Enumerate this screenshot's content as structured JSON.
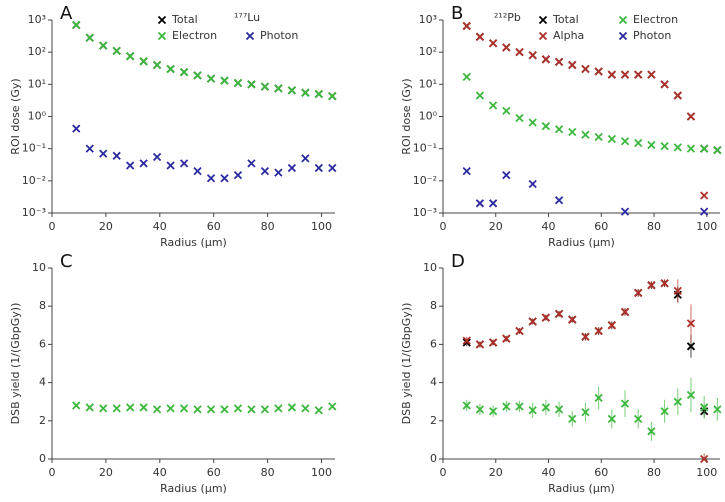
{
  "chart_data": [
    {
      "type": "scatter",
      "title": "A",
      "annotation": "¹⁷⁷Lu",
      "xlabel": "Radius  (µm)",
      "ylabel": "ROI dose (Gy)",
      "log_y": true,
      "x": [
        9,
        14,
        19,
        24,
        29,
        34,
        39,
        44,
        49,
        54,
        59,
        64,
        69,
        74,
        79,
        84,
        89,
        94,
        99,
        104
      ],
      "xlim": [
        0,
        105
      ],
      "xticks": [
        0,
        20,
        40,
        60,
        80,
        100
      ],
      "ylim": [
        0.001,
        1000
      ],
      "yticks": [
        {
          "value": 0.001,
          "label": "10⁻³"
        },
        {
          "value": 0.01,
          "label": "10⁻²"
        },
        {
          "value": 0.1,
          "label": "10⁻¹"
        },
        {
          "value": 1,
          "label": "10⁰"
        },
        {
          "value": 10,
          "label": "10¹"
        },
        {
          "value": 100,
          "label": "10²"
        },
        {
          "value": 1000,
          "label": "10³"
        }
      ],
      "series": [
        {
          "name": "Total",
          "color": "#000000",
          "values": [
            700,
            280,
            160,
            110,
            75,
            52,
            40,
            30,
            24,
            19,
            15,
            13,
            11,
            10,
            8.5,
            7.5,
            6.5,
            5.5,
            5,
            4.3
          ]
        },
        {
          "name": "Electron",
          "color": "#3cb83c",
          "values": [
            700,
            280,
            160,
            110,
            75,
            52,
            40,
            30,
            24,
            19,
            15,
            13,
            11,
            10,
            8.5,
            7.5,
            6.5,
            5.5,
            5,
            4.3
          ]
        },
        {
          "name": "Photon",
          "color": "#2a2aa0",
          "values": [
            0.42,
            0.1,
            0.07,
            0.06,
            0.03,
            0.035,
            0.055,
            0.03,
            0.035,
            0.02,
            0.012,
            0.012,
            0.015,
            0.035,
            0.02,
            0.018,
            0.025,
            0.05,
            0.025,
            0.025
          ]
        }
      ]
    },
    {
      "type": "scatter",
      "title": "B",
      "annotation": "²¹²Pb",
      "xlabel": "Radius  (µm)",
      "ylabel": "ROI dose (Gy)",
      "log_y": true,
      "x": [
        9,
        14,
        19,
        24,
        29,
        34,
        39,
        44,
        49,
        54,
        59,
        64,
        69,
        74,
        79,
        84,
        89,
        94,
        99,
        104
      ],
      "xlim": [
        0,
        105
      ],
      "xticks": [
        0,
        20,
        40,
        60,
        80,
        100
      ],
      "ylim": [
        0.001,
        1000
      ],
      "yticks": [
        {
          "value": 0.001,
          "label": "10⁻³"
        },
        {
          "value": 0.01,
          "label": "10⁻²"
        },
        {
          "value": 0.1,
          "label": "10⁻¹"
        },
        {
          "value": 1,
          "label": "10⁰"
        },
        {
          "value": 10,
          "label": "10¹"
        },
        {
          "value": 100,
          "label": "10²"
        },
        {
          "value": 1000,
          "label": "10³"
        }
      ],
      "series": [
        {
          "name": "Total",
          "color": "#000000",
          "values": [
            650,
            300,
            190,
            140,
            100,
            80,
            60,
            50,
            40,
            30,
            25,
            20,
            20,
            20,
            20,
            10,
            4.5,
            1.0,
            0.1,
            0.09
          ]
        },
        {
          "name": "Alpha",
          "color": "#b0302a",
          "values": [
            650,
            300,
            190,
            140,
            100,
            80,
            60,
            50,
            40,
            30,
            25,
            20,
            20,
            20,
            20,
            10,
            4.5,
            1.0,
            0.0035,
            null
          ]
        },
        {
          "name": "Electron",
          "color": "#3cb83c",
          "values": [
            17,
            4.5,
            2.2,
            1.5,
            0.9,
            0.65,
            0.5,
            0.4,
            0.33,
            0.27,
            0.23,
            0.2,
            0.17,
            0.15,
            0.13,
            0.12,
            0.11,
            0.1,
            0.1,
            0.09
          ]
        },
        {
          "name": "Photon",
          "color": "#2a2aa0",
          "values": [
            0.02,
            0.002,
            0.002,
            0.015,
            null,
            0.008,
            null,
            0.0025,
            null,
            null,
            null,
            null,
            0.0011,
            null,
            null,
            null,
            null,
            null,
            0.0011,
            null
          ]
        }
      ]
    },
    {
      "type": "scatter",
      "title": "C",
      "xlabel": "Radius  (µm)",
      "ylabel": "DSB yield (1/(GbpGy))",
      "log_y": false,
      "x": [
        9,
        14,
        19,
        24,
        29,
        34,
        39,
        44,
        49,
        54,
        59,
        64,
        69,
        74,
        79,
        84,
        89,
        94,
        99,
        104
      ],
      "xlim": [
        0,
        105
      ],
      "xticks": [
        0,
        20,
        40,
        60,
        80,
        100
      ],
      "ylim": [
        0,
        10
      ],
      "yticks": [
        0,
        2,
        4,
        6,
        8,
        10
      ],
      "series": [
        {
          "name": "Electron",
          "color": "#3cb83c",
          "values": [
            2.8,
            2.7,
            2.65,
            2.65,
            2.7,
            2.7,
            2.6,
            2.65,
            2.65,
            2.6,
            2.6,
            2.6,
            2.65,
            2.6,
            2.6,
            2.65,
            2.7,
            2.65,
            2.55,
            2.75
          ]
        }
      ]
    },
    {
      "type": "scatter",
      "title": "D",
      "xlabel": "Radius  (µm)",
      "ylabel": "DSB yield (1/(GbpGy))",
      "log_y": false,
      "x": [
        9,
        14,
        19,
        24,
        29,
        34,
        39,
        44,
        49,
        54,
        59,
        64,
        69,
        74,
        79,
        84,
        89,
        94,
        99,
        104
      ],
      "xlim": [
        0,
        105
      ],
      "xticks": [
        0,
        20,
        40,
        60,
        80,
        100
      ],
      "ylim": [
        0,
        10
      ],
      "yticks": [
        0,
        2,
        4,
        6,
        8,
        10
      ],
      "series": [
        {
          "name": "Total",
          "color": "#000000",
          "values": [
            6.1,
            6.0,
            6.1,
            6.3,
            6.7,
            7.2,
            7.4,
            7.6,
            7.3,
            6.4,
            6.7,
            7.0,
            7.7,
            8.7,
            9.1,
            9.2,
            8.6,
            5.9,
            2.5,
            null
          ],
          "errors": [
            0.2,
            0.15,
            0.15,
            0.15,
            0.15,
            0.15,
            0.15,
            0.15,
            0.15,
            0.2,
            0.2,
            0.2,
            0.2,
            0.2,
            0.2,
            0.2,
            0.4,
            0.6,
            0.3,
            null
          ]
        },
        {
          "name": "Alpha",
          "color": "#b0302a",
          "values": [
            6.2,
            6.0,
            6.1,
            6.3,
            6.7,
            7.2,
            7.4,
            7.6,
            7.3,
            6.4,
            6.7,
            7.0,
            7.7,
            8.7,
            9.1,
            9.2,
            8.8,
            7.1,
            0,
            null
          ],
          "errors": [
            0.2,
            0.15,
            0.15,
            0.15,
            0.15,
            0.15,
            0.15,
            0.15,
            0.15,
            0.2,
            0.2,
            0.2,
            0.2,
            0.2,
            0.2,
            0.2,
            0.6,
            1.0,
            0.3,
            null
          ]
        },
        {
          "name": "Electron",
          "color": "#3cb83c",
          "values": [
            2.8,
            2.6,
            2.5,
            2.75,
            2.75,
            2.55,
            2.7,
            2.6,
            2.1,
            2.45,
            3.2,
            2.1,
            2.9,
            2.1,
            1.45,
            2.5,
            3.0,
            3.35,
            2.7,
            2.6
          ],
          "errors": [
            0.3,
            0.3,
            0.3,
            0.3,
            0.3,
            0.4,
            0.4,
            0.4,
            0.4,
            0.5,
            0.6,
            0.5,
            0.7,
            0.5,
            0.5,
            0.6,
            0.7,
            0.9,
            0.6,
            0.6
          ]
        }
      ]
    }
  ]
}
